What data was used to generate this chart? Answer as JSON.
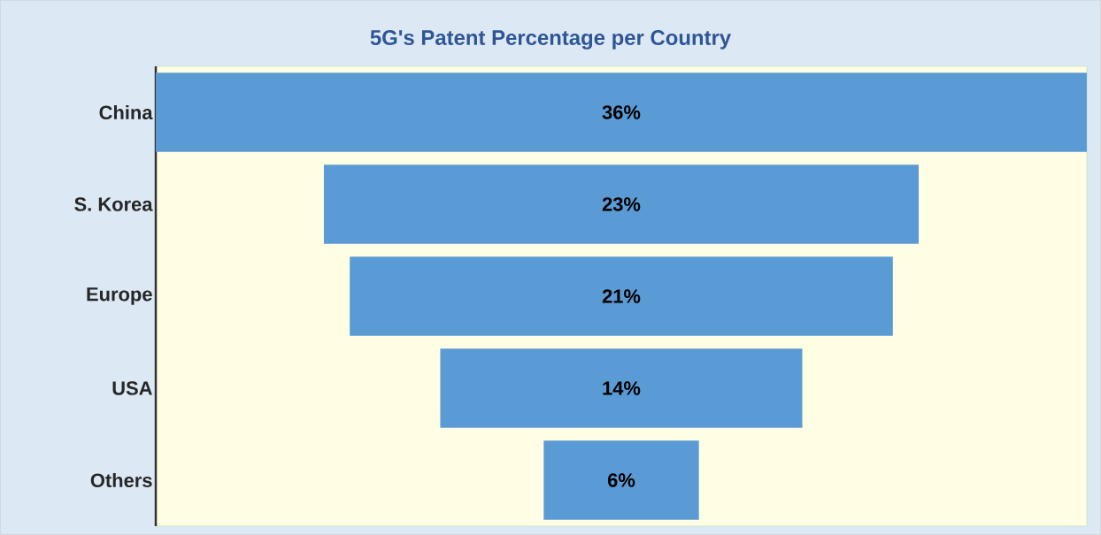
{
  "chart_data": {
    "type": "other",
    "title": "5G's Patent Percentage per Country",
    "categories": [
      "China",
      "S. Korea",
      "Europe",
      "USA",
      "Others"
    ],
    "values": [
      36,
      23,
      21,
      14,
      6
    ],
    "value_labels": [
      "36%",
      "23%",
      "21%",
      "14%",
      "6%"
    ],
    "color": "#5b9bd5"
  }
}
